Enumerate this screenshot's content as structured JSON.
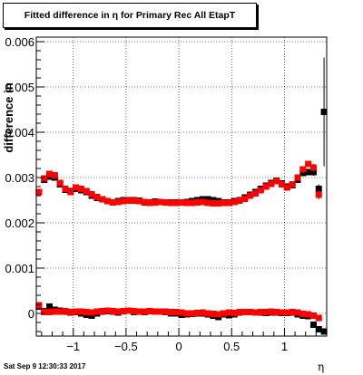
{
  "title": "Fitted difference in  η for Primary Rec All EtapT",
  "datestamp": "Sat Sep  9 12:30:33 2017",
  "chart_data": {
    "type": "scatter",
    "title": "Fitted difference in  η for Primary Rec All EtapT",
    "xlabel": "η",
    "ylabel": "difference in",
    "xlim": [
      -1.35,
      1.4
    ],
    "ylim": [
      -0.0005,
      0.0061
    ],
    "grid": true,
    "x_ticks": [
      -1,
      -0.5,
      0,
      0.5,
      1
    ],
    "x_tick_labels": [
      "−1",
      "−0.5",
      "0",
      "0.5",
      "1"
    ],
    "y_ticks": [
      0,
      0.001,
      0.002,
      0.003,
      0.004,
      0.005,
      0.006
    ],
    "y_tick_labels": [
      "0",
      "0.001",
      "0.002",
      "0.003",
      "0.004",
      "0.005",
      "0.006"
    ],
    "colors": {
      "series1": "#000000",
      "series2": "#ff0000"
    },
    "series": [
      {
        "color": "#000000",
        "x": [
          -1.325,
          -1.275,
          -1.225,
          -1.175,
          -1.125,
          -1.075,
          -1.025,
          -0.975,
          -0.925,
          -0.875,
          -0.825,
          -0.775,
          -0.725,
          -0.675,
          -0.625,
          -0.575,
          -0.525,
          -0.475,
          -0.425,
          -0.375,
          -0.325,
          -0.275,
          -0.225,
          -0.175,
          -0.125,
          -0.075,
          -0.025,
          0.025,
          0.075,
          0.125,
          0.175,
          0.225,
          0.275,
          0.325,
          0.375,
          0.425,
          0.475,
          0.525,
          0.575,
          0.625,
          0.675,
          0.725,
          0.775,
          0.825,
          0.875,
          0.925,
          0.975,
          1.025,
          1.075,
          1.125,
          1.175,
          1.225,
          1.275,
          1.325,
          1.375
        ],
        "y": [
          0.00268,
          0.00295,
          0.00302,
          0.003,
          0.00285,
          0.00273,
          0.0027,
          0.00275,
          0.00272,
          0.00268,
          0.0026,
          0.00255,
          0.00252,
          0.00248,
          0.00245,
          0.00248,
          0.0025,
          0.0025,
          0.0025,
          0.00249,
          0.00245,
          0.00245,
          0.00247,
          0.00246,
          0.00245,
          0.00245,
          0.00245,
          0.00245,
          0.00246,
          0.00248,
          0.0025,
          0.00252,
          0.00252,
          0.0025,
          0.00248,
          0.00245,
          0.00245,
          0.00248,
          0.0025,
          0.00256,
          0.00262,
          0.00268,
          0.00275,
          0.00282,
          0.00288,
          0.00293,
          0.00287,
          0.0028,
          0.00283,
          0.00295,
          0.0031,
          0.00312,
          0.00312,
          0.00275,
          0.00445
        ],
        "y_err": [
          6e-05,
          5e-05,
          4e-05,
          4e-05,
          3e-05,
          3e-05,
          3e-05,
          3e-05,
          2e-05,
          2e-05,
          2e-05,
          2e-05,
          2e-05,
          2e-05,
          2e-05,
          2e-05,
          2e-05,
          2e-05,
          2e-05,
          2e-05,
          2e-05,
          2e-05,
          2e-05,
          2e-05,
          2e-05,
          2e-05,
          2e-05,
          2e-05,
          2e-05,
          2e-05,
          2e-05,
          2e-05,
          2e-05,
          2e-05,
          2e-05,
          2e-05,
          2e-05,
          2e-05,
          2e-05,
          2e-05,
          2e-05,
          2e-05,
          2e-05,
          2e-05,
          3e-05,
          3e-05,
          3e-05,
          3e-05,
          3e-05,
          4e-05,
          5e-05,
          6e-05,
          8e-05,
          0.0001,
          0.0012
        ]
      },
      {
        "color": "#ff0000",
        "x": [
          -1.325,
          -1.275,
          -1.225,
          -1.175,
          -1.125,
          -1.075,
          -1.025,
          -0.975,
          -0.925,
          -0.875,
          -0.825,
          -0.775,
          -0.725,
          -0.675,
          -0.625,
          -0.575,
          -0.525,
          -0.475,
          -0.425,
          -0.375,
          -0.325,
          -0.275,
          -0.225,
          -0.175,
          -0.125,
          -0.075,
          -0.025,
          0.025,
          0.075,
          0.125,
          0.175,
          0.225,
          0.275,
          0.325,
          0.375,
          0.425,
          0.475,
          0.525,
          0.575,
          0.625,
          0.675,
          0.725,
          0.775,
          0.825,
          0.875,
          0.925,
          0.975,
          1.025,
          1.075,
          1.125,
          1.175,
          1.225,
          1.275,
          1.325
        ],
        "y": [
          0.00268,
          0.00298,
          0.00308,
          0.00305,
          0.00288,
          0.00275,
          0.00268,
          0.00278,
          0.00275,
          0.0027,
          0.00263,
          0.00257,
          0.00252,
          0.00248,
          0.00245,
          0.00246,
          0.00248,
          0.00249,
          0.00249,
          0.00248,
          0.00246,
          0.00244,
          0.00245,
          0.00246,
          0.00245,
          0.00244,
          0.00244,
          0.00245,
          0.00244,
          0.00244,
          0.00245,
          0.00246,
          0.00244,
          0.00243,
          0.00243,
          0.00244,
          0.00244,
          0.00246,
          0.00249,
          0.00253,
          0.0026,
          0.00265,
          0.00272,
          0.0028,
          0.00286,
          0.00292,
          0.00285,
          0.00278,
          0.00285,
          0.003,
          0.00318,
          0.0033,
          0.00322,
          0.00262
        ],
        "y_err": [
          6e-05,
          5e-05,
          4e-05,
          4e-05,
          3e-05,
          3e-05,
          3e-05,
          3e-05,
          2e-05,
          2e-05,
          2e-05,
          2e-05,
          2e-05,
          2e-05,
          2e-05,
          2e-05,
          2e-05,
          2e-05,
          2e-05,
          2e-05,
          2e-05,
          2e-05,
          2e-05,
          2e-05,
          2e-05,
          2e-05,
          2e-05,
          2e-05,
          2e-05,
          2e-05,
          2e-05,
          2e-05,
          2e-05,
          2e-05,
          2e-05,
          2e-05,
          2e-05,
          2e-05,
          2e-05,
          2e-05,
          2e-05,
          2e-05,
          2e-05,
          2e-05,
          3e-05,
          3e-05,
          3e-05,
          3e-05,
          3e-05,
          4e-05,
          5e-05,
          6e-05,
          8e-05,
          0.0001
        ]
      },
      {
        "color": "#000000",
        "x": [
          -1.325,
          -1.275,
          -1.225,
          -1.175,
          -1.125,
          -1.075,
          -1.025,
          -0.975,
          -0.925,
          -0.875,
          -0.825,
          -0.775,
          -0.725,
          -0.675,
          -0.625,
          -0.575,
          -0.525,
          -0.475,
          -0.425,
          -0.375,
          -0.325,
          -0.275,
          -0.225,
          -0.175,
          -0.125,
          -0.075,
          -0.025,
          0.025,
          0.075,
          0.125,
          0.175,
          0.225,
          0.275,
          0.325,
          0.375,
          0.425,
          0.475,
          0.525,
          0.575,
          0.625,
          0.675,
          0.725,
          0.775,
          0.825,
          0.875,
          0.925,
          0.975,
          1.025,
          1.075,
          1.125,
          1.175,
          1.225,
          1.275,
          1.325,
          1.375
        ],
        "y": [
          0.00015,
          5e-05,
          0.00015,
          8e-05,
          6e-05,
          4e-05,
          2e-05,
          3e-05,
          0.0,
          -3e-05,
          -5e-05,
          0.0,
          4e-05,
          5e-05,
          4e-05,
          2e-05,
          5e-05,
          6e-05,
          3e-05,
          4e-05,
          3e-05,
          5e-05,
          4e-05,
          4e-05,
          3e-05,
          0.0,
          0.0,
          -3e-05,
          -2e-05,
          -1e-05,
          0.0,
          0.0,
          -2e-05,
          -5e-05,
          -8e-05,
          -2e-05,
          -4e-05,
          -2e-05,
          2e-05,
          3e-05,
          3e-05,
          2e-05,
          2e-05,
          1e-05,
          2e-05,
          2e-05,
          1e-05,
          1e-05,
          2e-05,
          -2e-05,
          -5e-05,
          -6e-05,
          -0.00025,
          -0.00035,
          -0.0004
        ],
        "y_err": []
      },
      {
        "color": "#ff0000",
        "x": [
          -1.325,
          -1.275,
          -1.225,
          -1.175,
          -1.125,
          -1.075,
          -1.025,
          -0.975,
          -0.925,
          -0.875,
          -0.825,
          -0.775,
          -0.725,
          -0.675,
          -0.625,
          -0.575,
          -0.525,
          -0.475,
          -0.425,
          -0.375,
          -0.325,
          -0.275,
          -0.225,
          -0.175,
          -0.125,
          -0.075,
          -0.025,
          0.025,
          0.075,
          0.125,
          0.175,
          0.225,
          0.275,
          0.325,
          0.375,
          0.425,
          0.475,
          0.525,
          0.575,
          0.625,
          0.675,
          0.725,
          0.775,
          0.825,
          0.875,
          0.925,
          0.975,
          1.025,
          1.075,
          1.125,
          1.175,
          1.225,
          1.275,
          1.325
        ],
        "y": [
          0.00018,
          3e-05,
          3e-05,
          4e-05,
          4e-05,
          5e-05,
          3e-05,
          4e-05,
          4e-05,
          3e-05,
          2e-05,
          4e-05,
          5e-05,
          6e-05,
          5e-05,
          4e-05,
          5e-05,
          6e-05,
          5e-05,
          4e-05,
          4e-05,
          5e-05,
          4e-05,
          4e-05,
          4e-05,
          3e-05,
          3e-05,
          2e-05,
          0.0,
          0.0,
          1e-05,
          2e-05,
          0.0,
          -1e-05,
          -2e-05,
          0.0,
          2e-05,
          1e-05,
          3e-05,
          3e-05,
          3e-05,
          2e-05,
          3e-05,
          3e-05,
          4e-05,
          3e-05,
          2e-05,
          2e-05,
          3e-05,
          2e-05,
          -1e-05,
          -2e-05,
          -5e-05,
          -0.0001
        ],
        "y_err": []
      }
    ]
  }
}
